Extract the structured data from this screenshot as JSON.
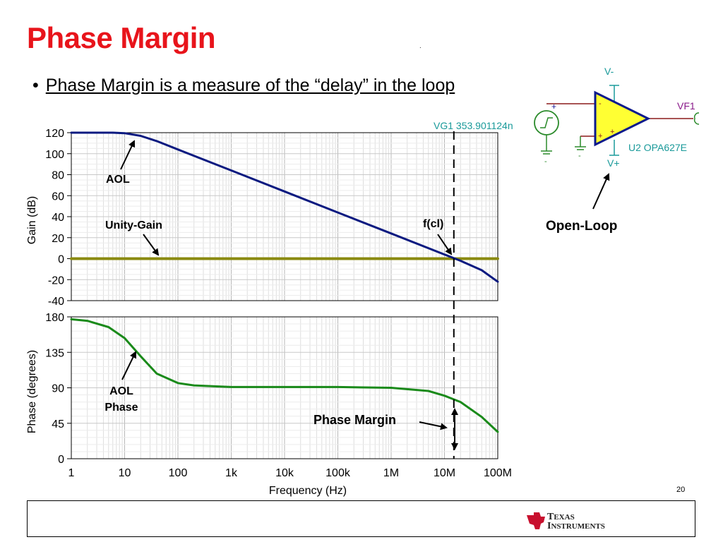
{
  "slide": {
    "title": "Phase Margin",
    "dot": ".",
    "bullet_marker": "•",
    "bullet_text": "Phase Margin is a measure of the “delay” in the loop",
    "slide_number": "20",
    "logo_line1_big": "T",
    "logo_line1_small": "EXAS",
    "logo_line2_big": "I",
    "logo_line2_small": "NSTRUMENTS"
  },
  "schematic": {
    "source_label": "VG1 353.901124n",
    "vminus_label": "V-",
    "vplus_label": "V+",
    "output_label": "VF1",
    "opamp_label": "U2 OPA627E",
    "plus_sign": "+",
    "minus_sign": "-",
    "annotation": "Open-Loop",
    "colors": {
      "opamp_fill": "#ffff33",
      "opamp_stroke": "#0b1a8c",
      "wire": "#8b1a1a",
      "ground": "#2a8a2a",
      "teal": "#1a9a9a",
      "purple": "#8a1a8a"
    }
  },
  "chart_data": [
    {
      "type": "line",
      "ylabel": "Gain (dB)",
      "ylim": [
        -40,
        120
      ],
      "yticks": [
        120,
        100,
        80,
        60,
        40,
        20,
        0,
        -20,
        -40
      ],
      "x_scale": "log",
      "xlim": [
        1,
        100000000
      ],
      "grid": true,
      "series": [
        {
          "name": "AOL",
          "color": "#0b1a80",
          "x": [
            1,
            3,
            6,
            10,
            20,
            40,
            100,
            1000,
            10000,
            100000,
            1000000,
            10000000,
            20000000,
            50000000,
            100000000
          ],
          "y": [
            120,
            120,
            120,
            119.5,
            117,
            112,
            104,
            84,
            64,
            44,
            24,
            4,
            -2,
            -11,
            -22
          ]
        },
        {
          "name": "Unity-Gain",
          "color": "#8a8a10",
          "x": [
            1,
            100000000
          ],
          "y": [
            0,
            0
          ]
        }
      ],
      "annotations": [
        {
          "text": "AOL",
          "arrow_to_x": 15,
          "arrow_to_y": 118
        },
        {
          "text": "Unity-Gain",
          "arrow_to_x": 40,
          "arrow_to_y": 0
        },
        {
          "text": "f(cl)",
          "arrow_to_x": 15000000,
          "arrow_to_y": 0
        }
      ],
      "vline_x": 15000000
    },
    {
      "type": "line",
      "ylabel": "Phase (degrees)",
      "xlabel": "Frequency (Hz)",
      "ylim": [
        0,
        180
      ],
      "yticks": [
        180,
        135,
        90,
        45,
        0
      ],
      "x_scale": "log",
      "xlim": [
        1,
        100000000
      ],
      "xtick_values": [
        1,
        10,
        100,
        1000,
        10000,
        100000,
        1000000,
        10000000,
        100000000
      ],
      "xticks": [
        "1",
        "10",
        "100",
        "1k",
        "10k",
        "100k",
        "1M",
        "10M",
        "100M"
      ],
      "grid": true,
      "series": [
        {
          "name": "AOL Phase",
          "color": "#1a8a1a",
          "x": [
            1,
            2,
            5,
            10,
            20,
            40,
            100,
            200,
            1000,
            10000,
            100000,
            1000000,
            5000000,
            10000000,
            20000000,
            50000000,
            100000000
          ],
          "y": [
            177,
            175,
            167,
            153,
            130,
            108,
            96,
            93,
            91,
            91,
            91,
            90,
            86,
            80,
            72,
            53,
            34
          ]
        }
      ],
      "annotations": [
        {
          "text": "AOL",
          "arrow_to_x": 15,
          "arrow_to_y": 136
        },
        {
          "text": "Phase",
          "arrow_to_x": 15,
          "arrow_to_y": 136
        },
        {
          "text": "Phase Margin",
          "arrow_to_x": 15000000,
          "arrow_to_y": 40
        }
      ],
      "vline_x": 15000000
    }
  ]
}
